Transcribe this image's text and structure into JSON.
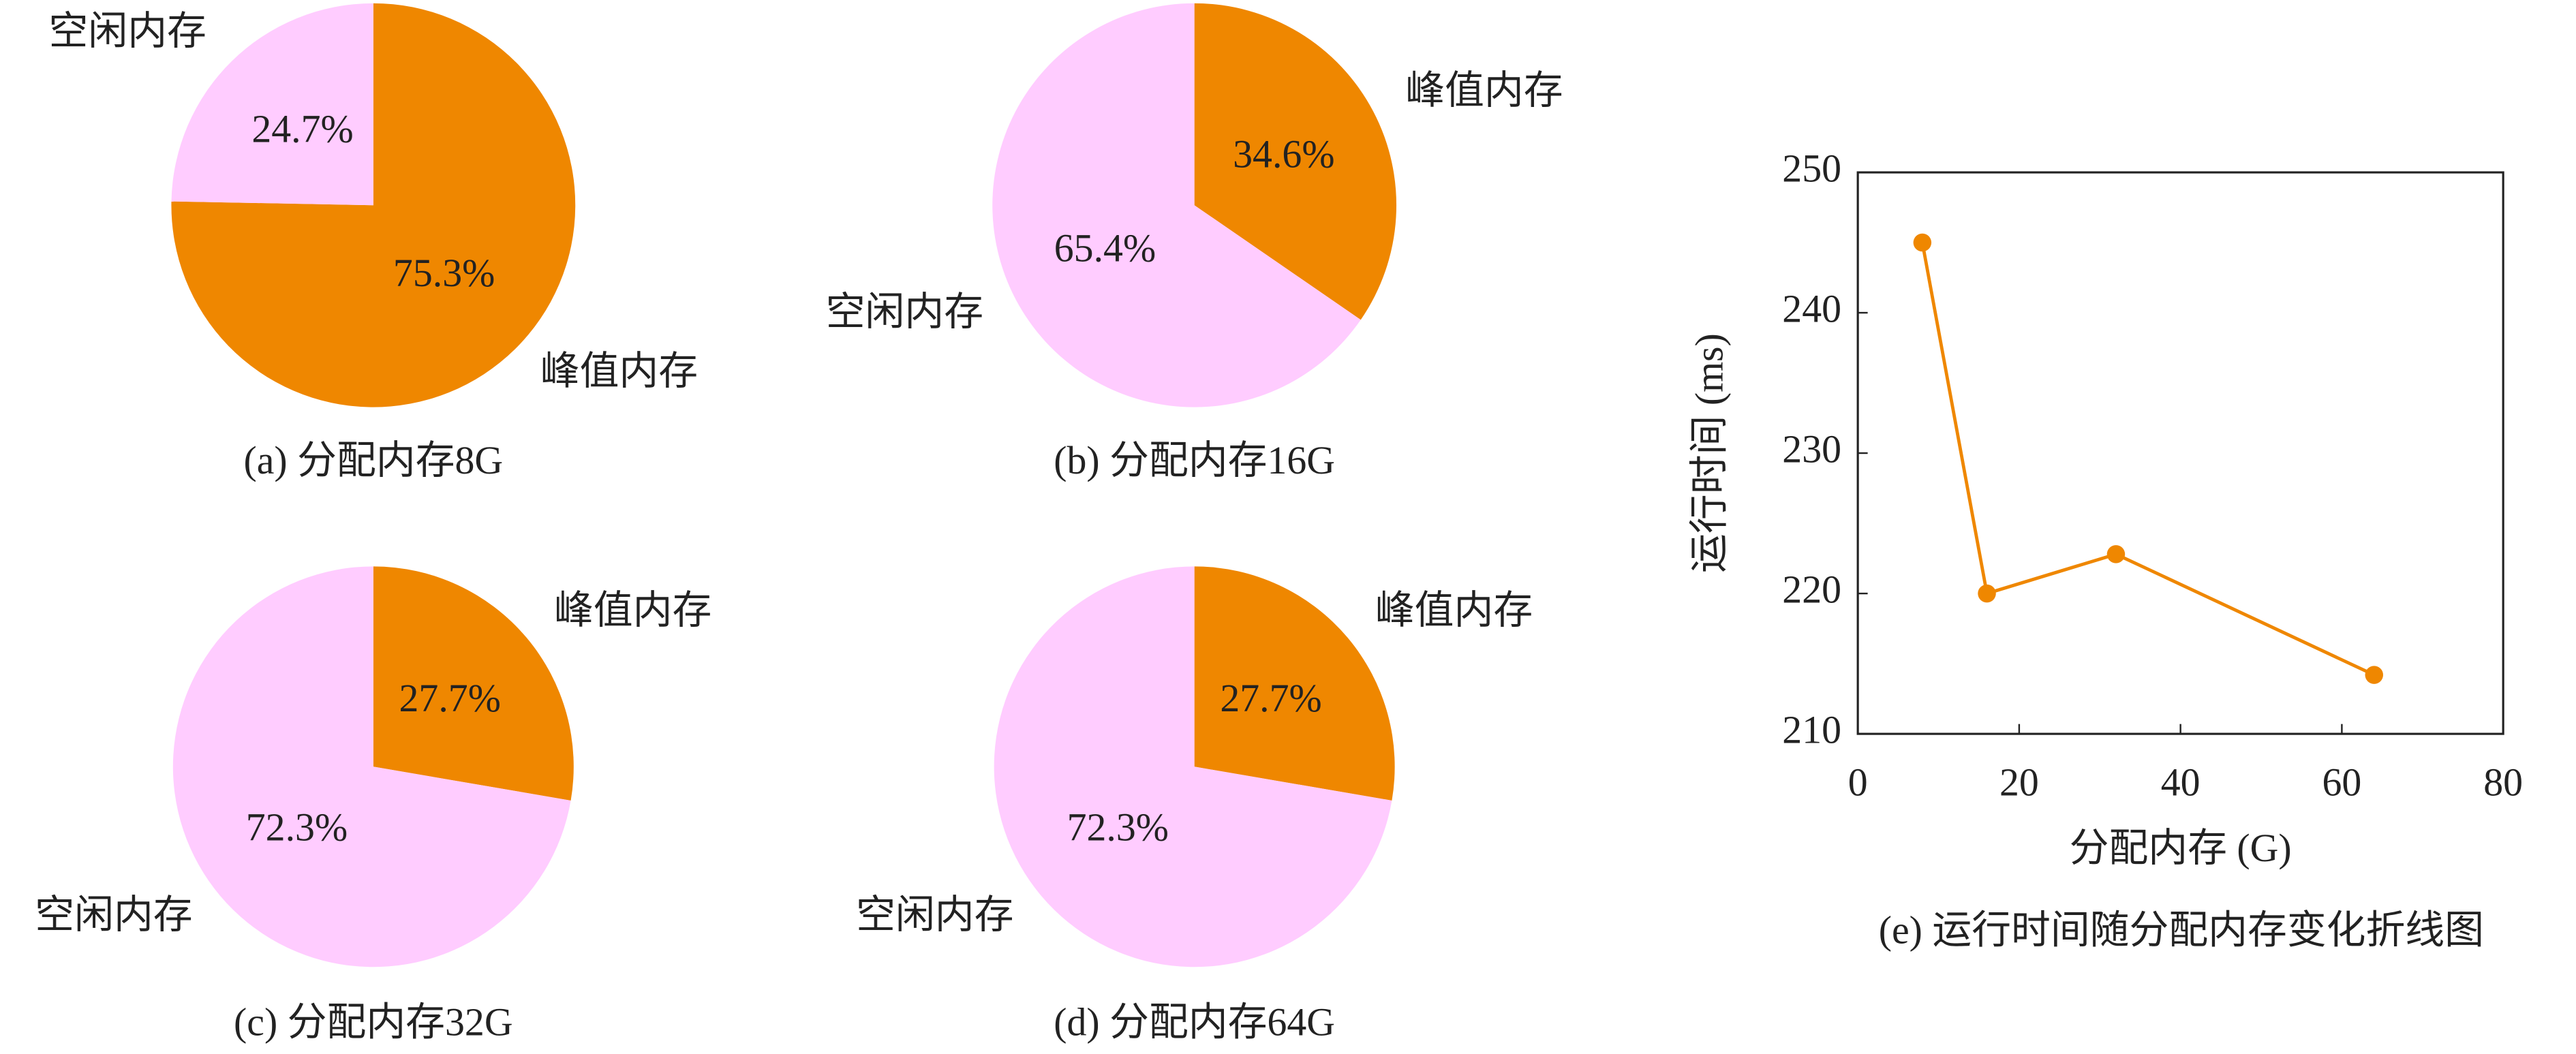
{
  "chart_data": [
    {
      "type": "pie",
      "title": "(a) 分配内存8G",
      "categories": [
        "峰值内存",
        "空闲内存"
      ],
      "values": [
        75.3,
        24.7
      ],
      "value_labels": [
        "75.3%",
        "24.7%"
      ],
      "colors": [
        "#ef8700",
        "#ffccff"
      ]
    },
    {
      "type": "pie",
      "title": "(b) 分配内存16G",
      "categories": [
        "峰值内存",
        "空闲内存"
      ],
      "values": [
        34.6,
        65.4
      ],
      "value_labels": [
        "34.6%",
        "65.4%"
      ],
      "colors": [
        "#ef8700",
        "#ffccff"
      ]
    },
    {
      "type": "pie",
      "title": "(c) 分配内存32G",
      "categories": [
        "峰值内存",
        "空闲内存"
      ],
      "values": [
        27.7,
        72.3
      ],
      "value_labels": [
        "27.7%",
        "72.3%"
      ],
      "colors": [
        "#ef8700",
        "#ffccff"
      ]
    },
    {
      "type": "pie",
      "title": "(d) 分配内存64G",
      "categories": [
        "峰值内存",
        "空闲内存"
      ],
      "values": [
        27.7,
        72.3
      ],
      "value_labels": [
        "27.7%",
        "72.3%"
      ],
      "colors": [
        "#ef8700",
        "#ffccff"
      ]
    },
    {
      "type": "line",
      "title": "(e) 运行时间随分配内存变化折线图",
      "x_label": "分配内存 (G)",
      "y_label": "运行时间 (ms)",
      "x": [
        8,
        16,
        32,
        64
      ],
      "values": [
        245,
        220,
        222.8,
        214.2
      ],
      "color": "#ef8700",
      "xlim": [
        0,
        80
      ],
      "ylim": [
        210,
        250
      ],
      "xticks": [
        0,
        20,
        40,
        60,
        80
      ],
      "yticks": [
        210,
        220,
        230,
        240,
        250
      ]
    }
  ]
}
